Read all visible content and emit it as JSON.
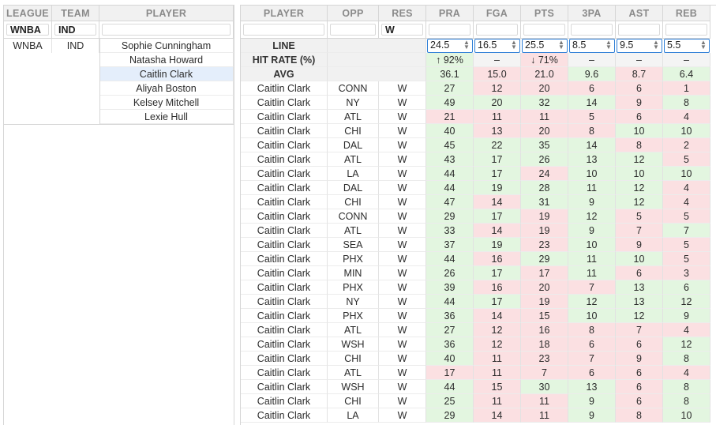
{
  "left_panel": {
    "headers": [
      "LEAGUE",
      "TEAM",
      "PLAYER"
    ],
    "filters": [
      "WNBA",
      "IND",
      ""
    ],
    "league": "WNBA",
    "team": "IND",
    "players": [
      "Sophie Cunningham",
      "Natasha Howard",
      "Caitlin Clark",
      "Aliyah Boston",
      "Kelsey Mitchell",
      "Lexie Hull"
    ],
    "selected_player": "Caitlin Clark"
  },
  "right_panel": {
    "headers": [
      "PLAYER",
      "OPP",
      "RES",
      "PRA",
      "FGA",
      "PTS",
      "3PA",
      "AST",
      "REB"
    ],
    "filters": [
      "",
      "",
      "W",
      "",
      "",
      "",
      "",
      "",
      ""
    ],
    "line_label": "LINE",
    "hit_label": "HIT RATE (%)",
    "avg_label": "AVG",
    "lines": [
      "24.5",
      "16.5",
      "25.5",
      "8.5",
      "9.5",
      "5.5"
    ],
    "hit_rates": [
      "↑ 92%",
      "–",
      "↓ 71%",
      "–",
      "–",
      "–"
    ],
    "avgs": [
      "36.1",
      "15.0",
      "21.0",
      "9.6",
      "8.7",
      "6.4"
    ],
    "spinner_icon": "up-down-spinner",
    "colors": {
      "green": "#e3f6e0",
      "red": "#fbe0e2",
      "accent": "#2f7fd6",
      "selected": "#e4eefb"
    },
    "rows": [
      {
        "player": "Caitlin Clark",
        "opp": "CONN",
        "res": "W",
        "stats": [
          27,
          12,
          20,
          6,
          6,
          1
        ]
      },
      {
        "player": "Caitlin Clark",
        "opp": "NY",
        "res": "W",
        "stats": [
          49,
          20,
          32,
          14,
          9,
          8
        ]
      },
      {
        "player": "Caitlin Clark",
        "opp": "ATL",
        "res": "W",
        "stats": [
          21,
          11,
          11,
          5,
          6,
          4
        ]
      },
      {
        "player": "Caitlin Clark",
        "opp": "CHI",
        "res": "W",
        "stats": [
          40,
          13,
          20,
          8,
          10,
          10
        ]
      },
      {
        "player": "Caitlin Clark",
        "opp": "DAL",
        "res": "W",
        "stats": [
          45,
          22,
          35,
          14,
          8,
          2
        ]
      },
      {
        "player": "Caitlin Clark",
        "opp": "ATL",
        "res": "W",
        "stats": [
          43,
          17,
          26,
          13,
          12,
          5
        ]
      },
      {
        "player": "Caitlin Clark",
        "opp": "LA",
        "res": "W",
        "stats": [
          44,
          17,
          24,
          10,
          10,
          10
        ]
      },
      {
        "player": "Caitlin Clark",
        "opp": "DAL",
        "res": "W",
        "stats": [
          44,
          19,
          28,
          11,
          12,
          4
        ]
      },
      {
        "player": "Caitlin Clark",
        "opp": "CHI",
        "res": "W",
        "stats": [
          47,
          14,
          31,
          9,
          12,
          4
        ]
      },
      {
        "player": "Caitlin Clark",
        "opp": "CONN",
        "res": "W",
        "stats": [
          29,
          17,
          19,
          12,
          5,
          5
        ]
      },
      {
        "player": "Caitlin Clark",
        "opp": "ATL",
        "res": "W",
        "stats": [
          33,
          14,
          19,
          9,
          7,
          7
        ]
      },
      {
        "player": "Caitlin Clark",
        "opp": "SEA",
        "res": "W",
        "stats": [
          37,
          19,
          23,
          10,
          9,
          5
        ]
      },
      {
        "player": "Caitlin Clark",
        "opp": "PHX",
        "res": "W",
        "stats": [
          44,
          16,
          29,
          11,
          10,
          5
        ]
      },
      {
        "player": "Caitlin Clark",
        "opp": "MIN",
        "res": "W",
        "stats": [
          26,
          17,
          17,
          11,
          6,
          3
        ]
      },
      {
        "player": "Caitlin Clark",
        "opp": "PHX",
        "res": "W",
        "stats": [
          39,
          16,
          20,
          7,
          13,
          6
        ]
      },
      {
        "player": "Caitlin Clark",
        "opp": "NY",
        "res": "W",
        "stats": [
          44,
          17,
          19,
          12,
          13,
          12
        ]
      },
      {
        "player": "Caitlin Clark",
        "opp": "PHX",
        "res": "W",
        "stats": [
          36,
          14,
          15,
          10,
          12,
          9
        ]
      },
      {
        "player": "Caitlin Clark",
        "opp": "ATL",
        "res": "W",
        "stats": [
          27,
          12,
          16,
          8,
          7,
          4
        ]
      },
      {
        "player": "Caitlin Clark",
        "opp": "WSH",
        "res": "W",
        "stats": [
          36,
          12,
          18,
          6,
          6,
          12
        ]
      },
      {
        "player": "Caitlin Clark",
        "opp": "CHI",
        "res": "W",
        "stats": [
          40,
          11,
          23,
          7,
          9,
          8
        ]
      },
      {
        "player": "Caitlin Clark",
        "opp": "ATL",
        "res": "W",
        "stats": [
          17,
          11,
          7,
          6,
          6,
          4
        ]
      },
      {
        "player": "Caitlin Clark",
        "opp": "WSH",
        "res": "W",
        "stats": [
          44,
          15,
          30,
          13,
          6,
          8
        ]
      },
      {
        "player": "Caitlin Clark",
        "opp": "CHI",
        "res": "W",
        "stats": [
          25,
          11,
          11,
          9,
          6,
          8
        ]
      },
      {
        "player": "Caitlin Clark",
        "opp": "LA",
        "res": "W",
        "stats": [
          29,
          14,
          11,
          9,
          8,
          10
        ]
      }
    ]
  }
}
